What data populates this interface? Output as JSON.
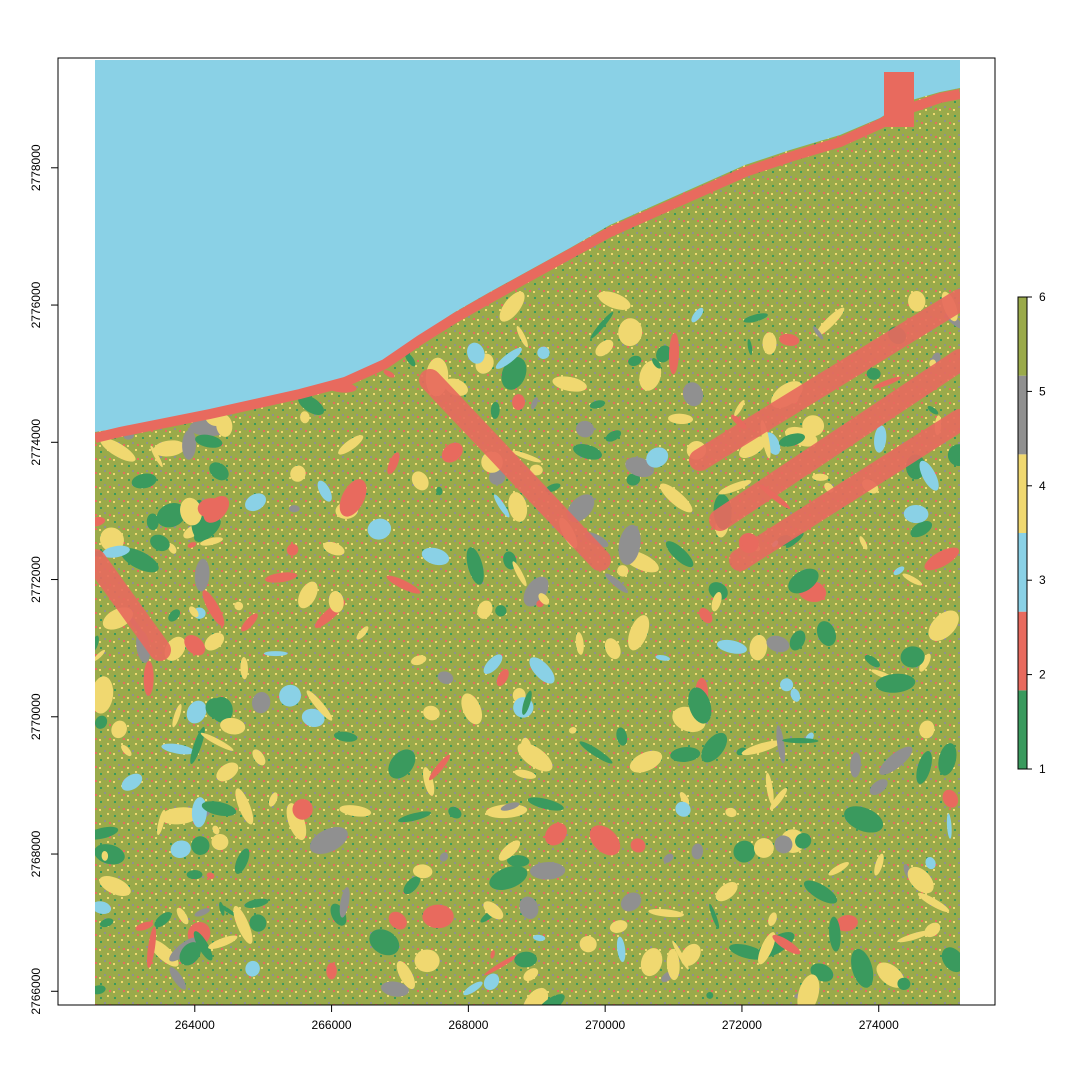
{
  "chart_data": {
    "type": "heatmap",
    "title": "",
    "xlabel": "",
    "ylabel": "",
    "x_ticks": [
      264000,
      266000,
      268000,
      270000,
      272000,
      274000
    ],
    "y_ticks": [
      2766000,
      2768000,
      2770000,
      2772000,
      2774000,
      2776000,
      2778000
    ],
    "x_tick_labels": [
      "264000",
      "266000",
      "268000",
      "270000",
      "272000",
      "274000"
    ],
    "y_tick_labels": [
      "2766000",
      "2768000",
      "2770000",
      "2772000",
      "2774000",
      "2776000",
      "2778000"
    ],
    "xlim": [
      262000,
      275700
    ],
    "ylim": [
      2765800,
      2779600
    ],
    "raster_extent": {
      "xmin": 262500,
      "xmax": 275200,
      "ymin": 2765800,
      "ymax": 2779600
    },
    "legend": {
      "placement": "right",
      "range": [
        1,
        6
      ],
      "tick_labels": [
        "1",
        "2",
        "3",
        "4",
        "5",
        "6"
      ],
      "classes": [
        {
          "value": 1,
          "color": "#3a9a5e"
        },
        {
          "value": 2,
          "color": "#e86a5e"
        },
        {
          "value": 3,
          "color": "#8ad1e6"
        },
        {
          "value": 4,
          "color": "#f0d870"
        },
        {
          "value": 5,
          "color": "#909090"
        },
        {
          "value": 6,
          "color": "#9aaa4a"
        }
      ]
    }
  }
}
